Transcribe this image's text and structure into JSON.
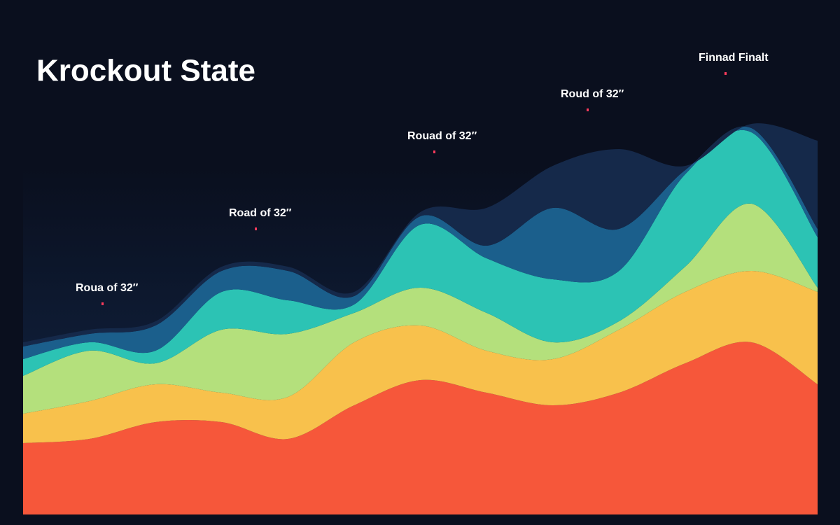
{
  "chart_data": {
    "type": "stacked_area",
    "title": "Krockout State",
    "annotations": [
      "Roua of 32″",
      "Road of 32″",
      "Rouad of 32″",
      "Roud of 32″",
      "Finnad Finalt"
    ],
    "categories": [
      null,
      null,
      null,
      null,
      null,
      null,
      null,
      null,
      null,
      null,
      null,
      null,
      null
    ],
    "ylim": [
      0,
      120
    ],
    "series": [
      {
        "color": "#f6573a",
        "values": [
          17,
          18,
          22,
          22,
          18,
          26,
          32,
          29,
          26,
          29,
          36,
          41,
          31
        ]
      },
      {
        "color": "#f8c14c",
        "values": [
          7,
          9,
          9,
          7,
          10,
          15,
          13,
          10,
          11,
          15,
          17,
          17,
          22
        ]
      },
      {
        "color": "#b4e07c",
        "values": [
          9,
          12,
          5,
          15,
          15,
          7,
          9,
          9,
          4,
          2,
          6,
          16,
          1
        ]
      },
      {
        "color": "#2cc3b4",
        "values": [
          4,
          2,
          3,
          9,
          8,
          2,
          15,
          13,
          15,
          12,
          22,
          17,
          12
        ]
      },
      {
        "color": "#1b5f8c",
        "values": [
          3,
          2,
          6,
          5,
          7,
          2,
          2,
          3,
          17,
          10,
          1,
          1,
          2
        ]
      },
      {
        "color": "#15294a",
        "values": [
          1,
          1,
          1,
          1,
          1,
          1,
          1,
          9,
          10,
          19,
          1,
          1,
          21
        ]
      }
    ]
  }
}
